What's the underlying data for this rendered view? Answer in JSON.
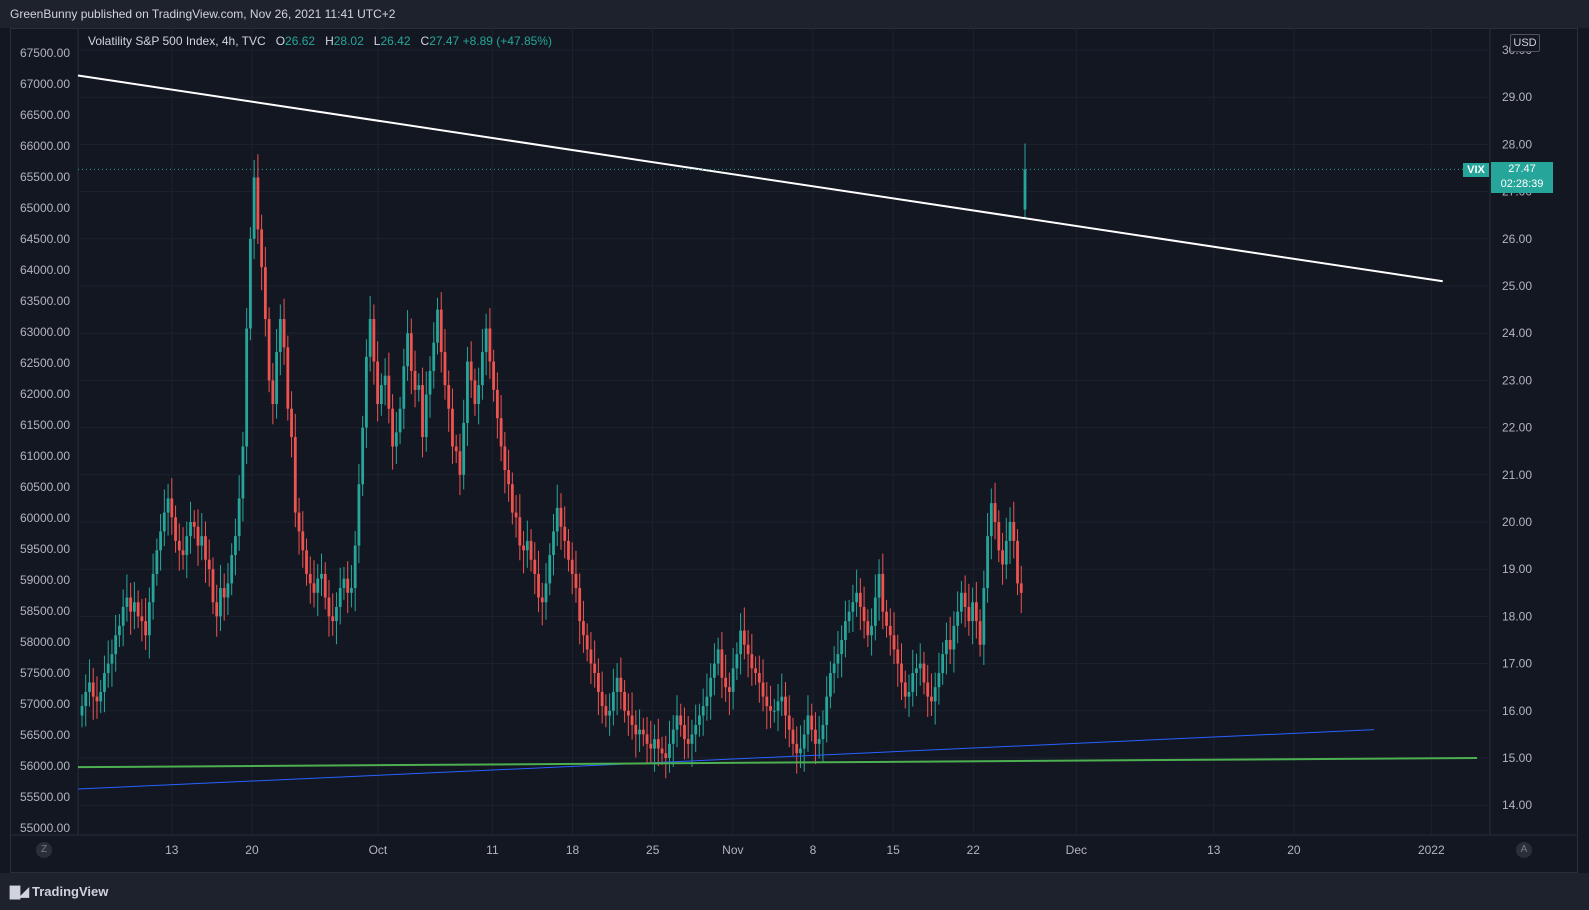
{
  "header": {
    "published": "GreenBunny published on TradingView.com, Nov 26, 2021 11:41 UTC+2"
  },
  "legend": {
    "symbol": "Volatility S&P 500 Index, 4h, TVC",
    "o_label": "O",
    "o_value": "26.62",
    "h_label": "H",
    "h_value": "28.02",
    "l_label": "L",
    "l_value": "26.42",
    "c_label": "C",
    "c_value": "27.47",
    "change": "+8.89 (+47.85%)"
  },
  "price_tag": {
    "symbol": "VIX",
    "price": "27.47",
    "countdown": "02:28:39",
    "color": "#26a69a"
  },
  "currency_button": "USD",
  "corner_left": "Z",
  "corner_right": "A",
  "footer": {
    "brand": "TradingView",
    "logo_icon": "tradingview-logo-icon"
  },
  "chart_data": {
    "type": "candlestick",
    "colors": {
      "up": "#26a69a",
      "down": "#ef5350",
      "grid": "#1e222d",
      "bg": "#131722"
    },
    "left_axis": {
      "ticks": [
        "67500.00",
        "67000.00",
        "66500.00",
        "66000.00",
        "65500.00",
        "65000.00",
        "64500.00",
        "64000.00",
        "63500.00",
        "63000.00",
        "62500.00",
        "62000.00",
        "61500.00",
        "61000.00",
        "60500.00",
        "60000.00",
        "59500.00",
        "59000.00",
        "58500.00",
        "58000.00",
        "57500.00",
        "57000.00",
        "56500.00",
        "56000.00",
        "55500.00",
        "55000.00"
      ]
    },
    "right_axis": {
      "ylim": [
        13.6,
        30.6
      ],
      "ticks": [
        "30.00",
        "29.00",
        "28.00",
        "27.00",
        "26.00",
        "25.00",
        "24.00",
        "23.00",
        "22.00",
        "21.00",
        "20.00",
        "19.00",
        "18.00",
        "17.00",
        "16.00",
        "15.00",
        "14.00"
      ]
    },
    "x_axis": {
      "ticks": [
        "13",
        "20",
        "Oct",
        "11",
        "18",
        "25",
        "Nov",
        "8",
        "15",
        "22",
        "Dec",
        "13",
        "20",
        "2022"
      ]
    },
    "candles_close": [
      16.1,
      16.4,
      16.6,
      16.3,
      16.2,
      16.4,
      16.8,
      17.0,
      17.2,
      17.6,
      17.8,
      18.2,
      18.4,
      18.1,
      18.3,
      18.0,
      17.9,
      17.6,
      18.3,
      18.9,
      19.4,
      19.8,
      20.2,
      20.5,
      20.1,
      19.6,
      19.4,
      19.3,
      19.7,
      20.0,
      19.9,
      19.5,
      19.7,
      19.2,
      19.0,
      18.3,
      18.0,
      18.6,
      18.4,
      18.7,
      19.3,
      19.7,
      20.5,
      21.6,
      24.1,
      26.0,
      27.3,
      26.2,
      25.4,
      24.3,
      23.0,
      22.5,
      23.6,
      24.3,
      23.7,
      22.4,
      21.8,
      20.2,
      19.8,
      19.4,
      18.9,
      18.7,
      18.5,
      18.8,
      18.9,
      18.4,
      18.0,
      17.9,
      18.2,
      18.6,
      18.8,
      18.5,
      18.6,
      19.5,
      20.8,
      22.0,
      23.5,
      24.3,
      23.4,
      22.5,
      22.9,
      23.1,
      22.4,
      21.6,
      21.9,
      22.4,
      23.3,
      24.0,
      23.2,
      22.8,
      22.9,
      21.8,
      22.7,
      23.2,
      23.8,
      24.5,
      23.6,
      22.9,
      22.4,
      21.6,
      21.5,
      21.0,
      22.1,
      23.4,
      23.0,
      22.5,
      22.9,
      23.6,
      24.1,
      23.4,
      22.8,
      22.2,
      21.6,
      21.1,
      20.8,
      20.2,
      20.1,
      19.5,
      19.4,
      19.6,
      19.2,
      18.9,
      18.4,
      18.3,
      18.7,
      19.3,
      19.8,
      20.3,
      19.9,
      19.6,
      19.2,
      18.9,
      18.6,
      17.9,
      17.6,
      17.3,
      17.0,
      16.8,
      16.4,
      16.1,
      15.9,
      16.0,
      16.4,
      16.7,
      16.4,
      16.0,
      15.9,
      15.7,
      15.5,
      15.6,
      15.5,
      15.3,
      15.2,
      15.4,
      15.2,
      15.1,
      15.0,
      15.3,
      15.6,
      15.9,
      15.7,
      15.4,
      15.3,
      15.5,
      15.7,
      15.9,
      16.1,
      16.3,
      16.7,
      17.0,
      17.3,
      16.7,
      16.5,
      16.4,
      16.9,
      17.2,
      17.7,
      17.4,
      17.2,
      16.9,
      16.8,
      16.6,
      16.3,
      16.1,
      16.0,
      16.0,
      16.2,
      16.3,
      15.9,
      15.6,
      15.3,
      15.1,
      15.2,
      15.5,
      15.9,
      15.6,
      15.3,
      15.4,
      15.7,
      16.3,
      16.8,
      17.0,
      17.2,
      17.5,
      17.9,
      18.1,
      18.3,
      18.5,
      18.2,
      17.9,
      17.6,
      17.8,
      18.4,
      18.9,
      18.1,
      17.8,
      17.6,
      17.3,
      17.0,
      16.6,
      16.3,
      16.4,
      16.8,
      16.9,
      17.0,
      16.6,
      16.3,
      16.2,
      16.5,
      16.8,
      17.2,
      17.5,
      17.3,
      17.8,
      18.1,
      18.5,
      18.2,
      17.9,
      18.3,
      17.9,
      17.4,
      18.6,
      19.7,
      20.4,
      20.0,
      19.4,
      19.1,
      19.6,
      20.0,
      19.6,
      18.7,
      18.5,
      27.47
    ],
    "trendlines": [
      {
        "name": "",
        "color": "#ffffff",
        "from_date": "Sep 1",
        "from_y": 29.6,
        "to_date": "Jan 2",
        "to_y": 25.1
      },
      {
        "name": "",
        "color": "#2962ff",
        "from_date": "Sep 1",
        "from_y": 14.3,
        "to_date": "Dec 27",
        "to_y": 15.6
      },
      {
        "name": "",
        "color": "#4caf50",
        "from_date": "Sep 1",
        "from_y": 14.8,
        "to_date": "Jan 5",
        "to_y": 15.0
      }
    ],
    "last_price_line": 27.47
  }
}
